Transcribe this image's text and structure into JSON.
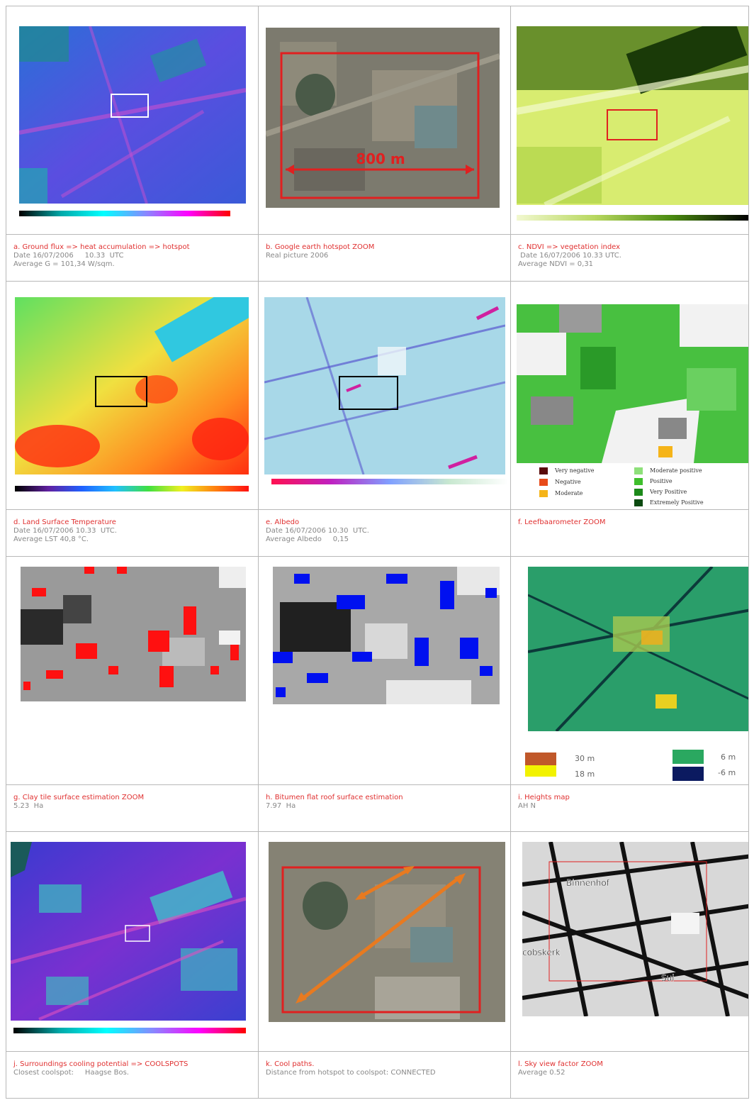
{
  "panels": {
    "a": {
      "title": "a. Ground flux => heat accumulation => hotspot",
      "line1": "Date 16/07/2006     10.33  UTC",
      "line2": "Average G = 101,34 W/sqm."
    },
    "b": {
      "title": "b. Google earth hotspot ZOOM",
      "line1": "Real picture 2006",
      "scale_label": "800 m"
    },
    "c": {
      "title": "c. NDVI => vegetation index",
      "line1": " Date 16/07/2006 10.33 UTC.",
      "line2": "Average NDVI = 0,31"
    },
    "d": {
      "title": "d. Land Surface Temperature",
      "line1": "Date 16/07/2006 10.33  UTC.",
      "line2": "Average LST 40,8 °C."
    },
    "e": {
      "title": "e. Albedo",
      "line1": "Date 16/07/2006 10.30  UTC.",
      "line2": "Average Albedo     0,15"
    },
    "f": {
      "title": "f. Leefbaarometer  ZOOM",
      "legend": [
        "Very negative",
        "Negative",
        "Moderate",
        "Moderate positive",
        "Positive",
        "Very Positive",
        "Extremely Positive"
      ],
      "legend_colors": [
        "#5a0a0a",
        "#e84b1a",
        "#f5b419",
        "#8ee07a",
        "#3fbf2c",
        "#1c8a1a",
        "#0b4a10"
      ]
    },
    "g": {
      "title": "g. Clay tile surface estimation    ZOOM",
      "line1": "5.23  Ha"
    },
    "h": {
      "title": "h. Bitumen flat roof surface estimation",
      "line1": "7.97  Ha"
    },
    "i": {
      "title": "i. Heights map",
      "line1": "AH N",
      "legend": [
        "30 m",
        "18  m",
        "6  m",
        "-6  m"
      ],
      "legend_colors": [
        "#c0582a",
        "#f2f200",
        "#2aa860",
        "#0b1a60"
      ]
    },
    "j": {
      "title": "j.   Surroundings cooling potential => COOLSPOTS",
      "line1": "Closest coolspot:     Haagse Bos."
    },
    "k": {
      "title": "k.  Cool paths.",
      "line1": "Distance from hotspot to coolspot: CONNECTED"
    },
    "l": {
      "title": "l.    Sky view factor ZOOM",
      "line1": "Average 0.52",
      "map_labels": [
        "Binnenhof",
        "cobskerk",
        "Sui"
      ]
    }
  }
}
